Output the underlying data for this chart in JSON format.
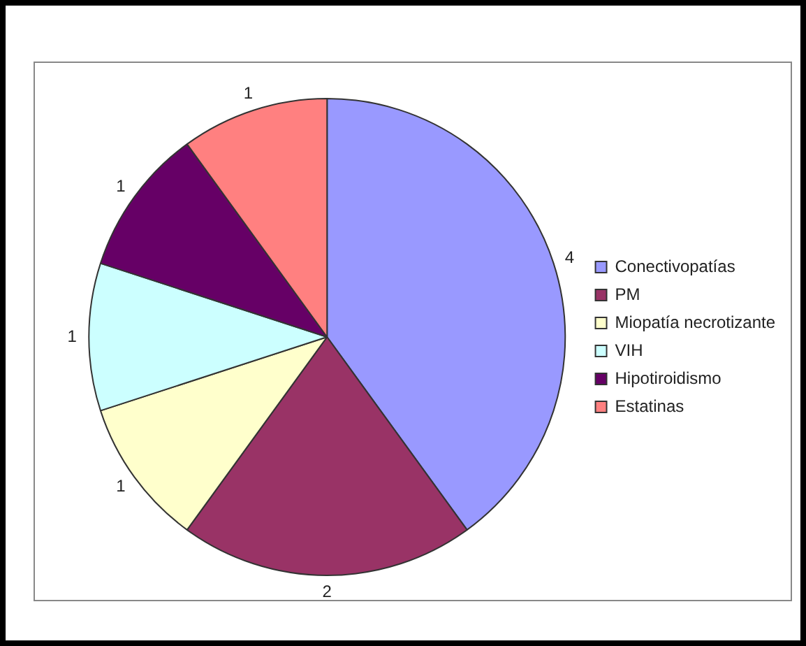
{
  "chart_data": {
    "type": "pie",
    "categories": [
      "Conectivopatías",
      "PM",
      "Miopatía necrotizante",
      "VIH",
      "Hipotiroidismo",
      "Estatinas"
    ],
    "values": [
      4,
      2,
      1,
      1,
      1,
      1
    ],
    "colors": [
      "#9999ff",
      "#993366",
      "#ffffcc",
      "#ccffff",
      "#660066",
      "#ff8080"
    ],
    "legend": "right",
    "data_labels": true
  }
}
